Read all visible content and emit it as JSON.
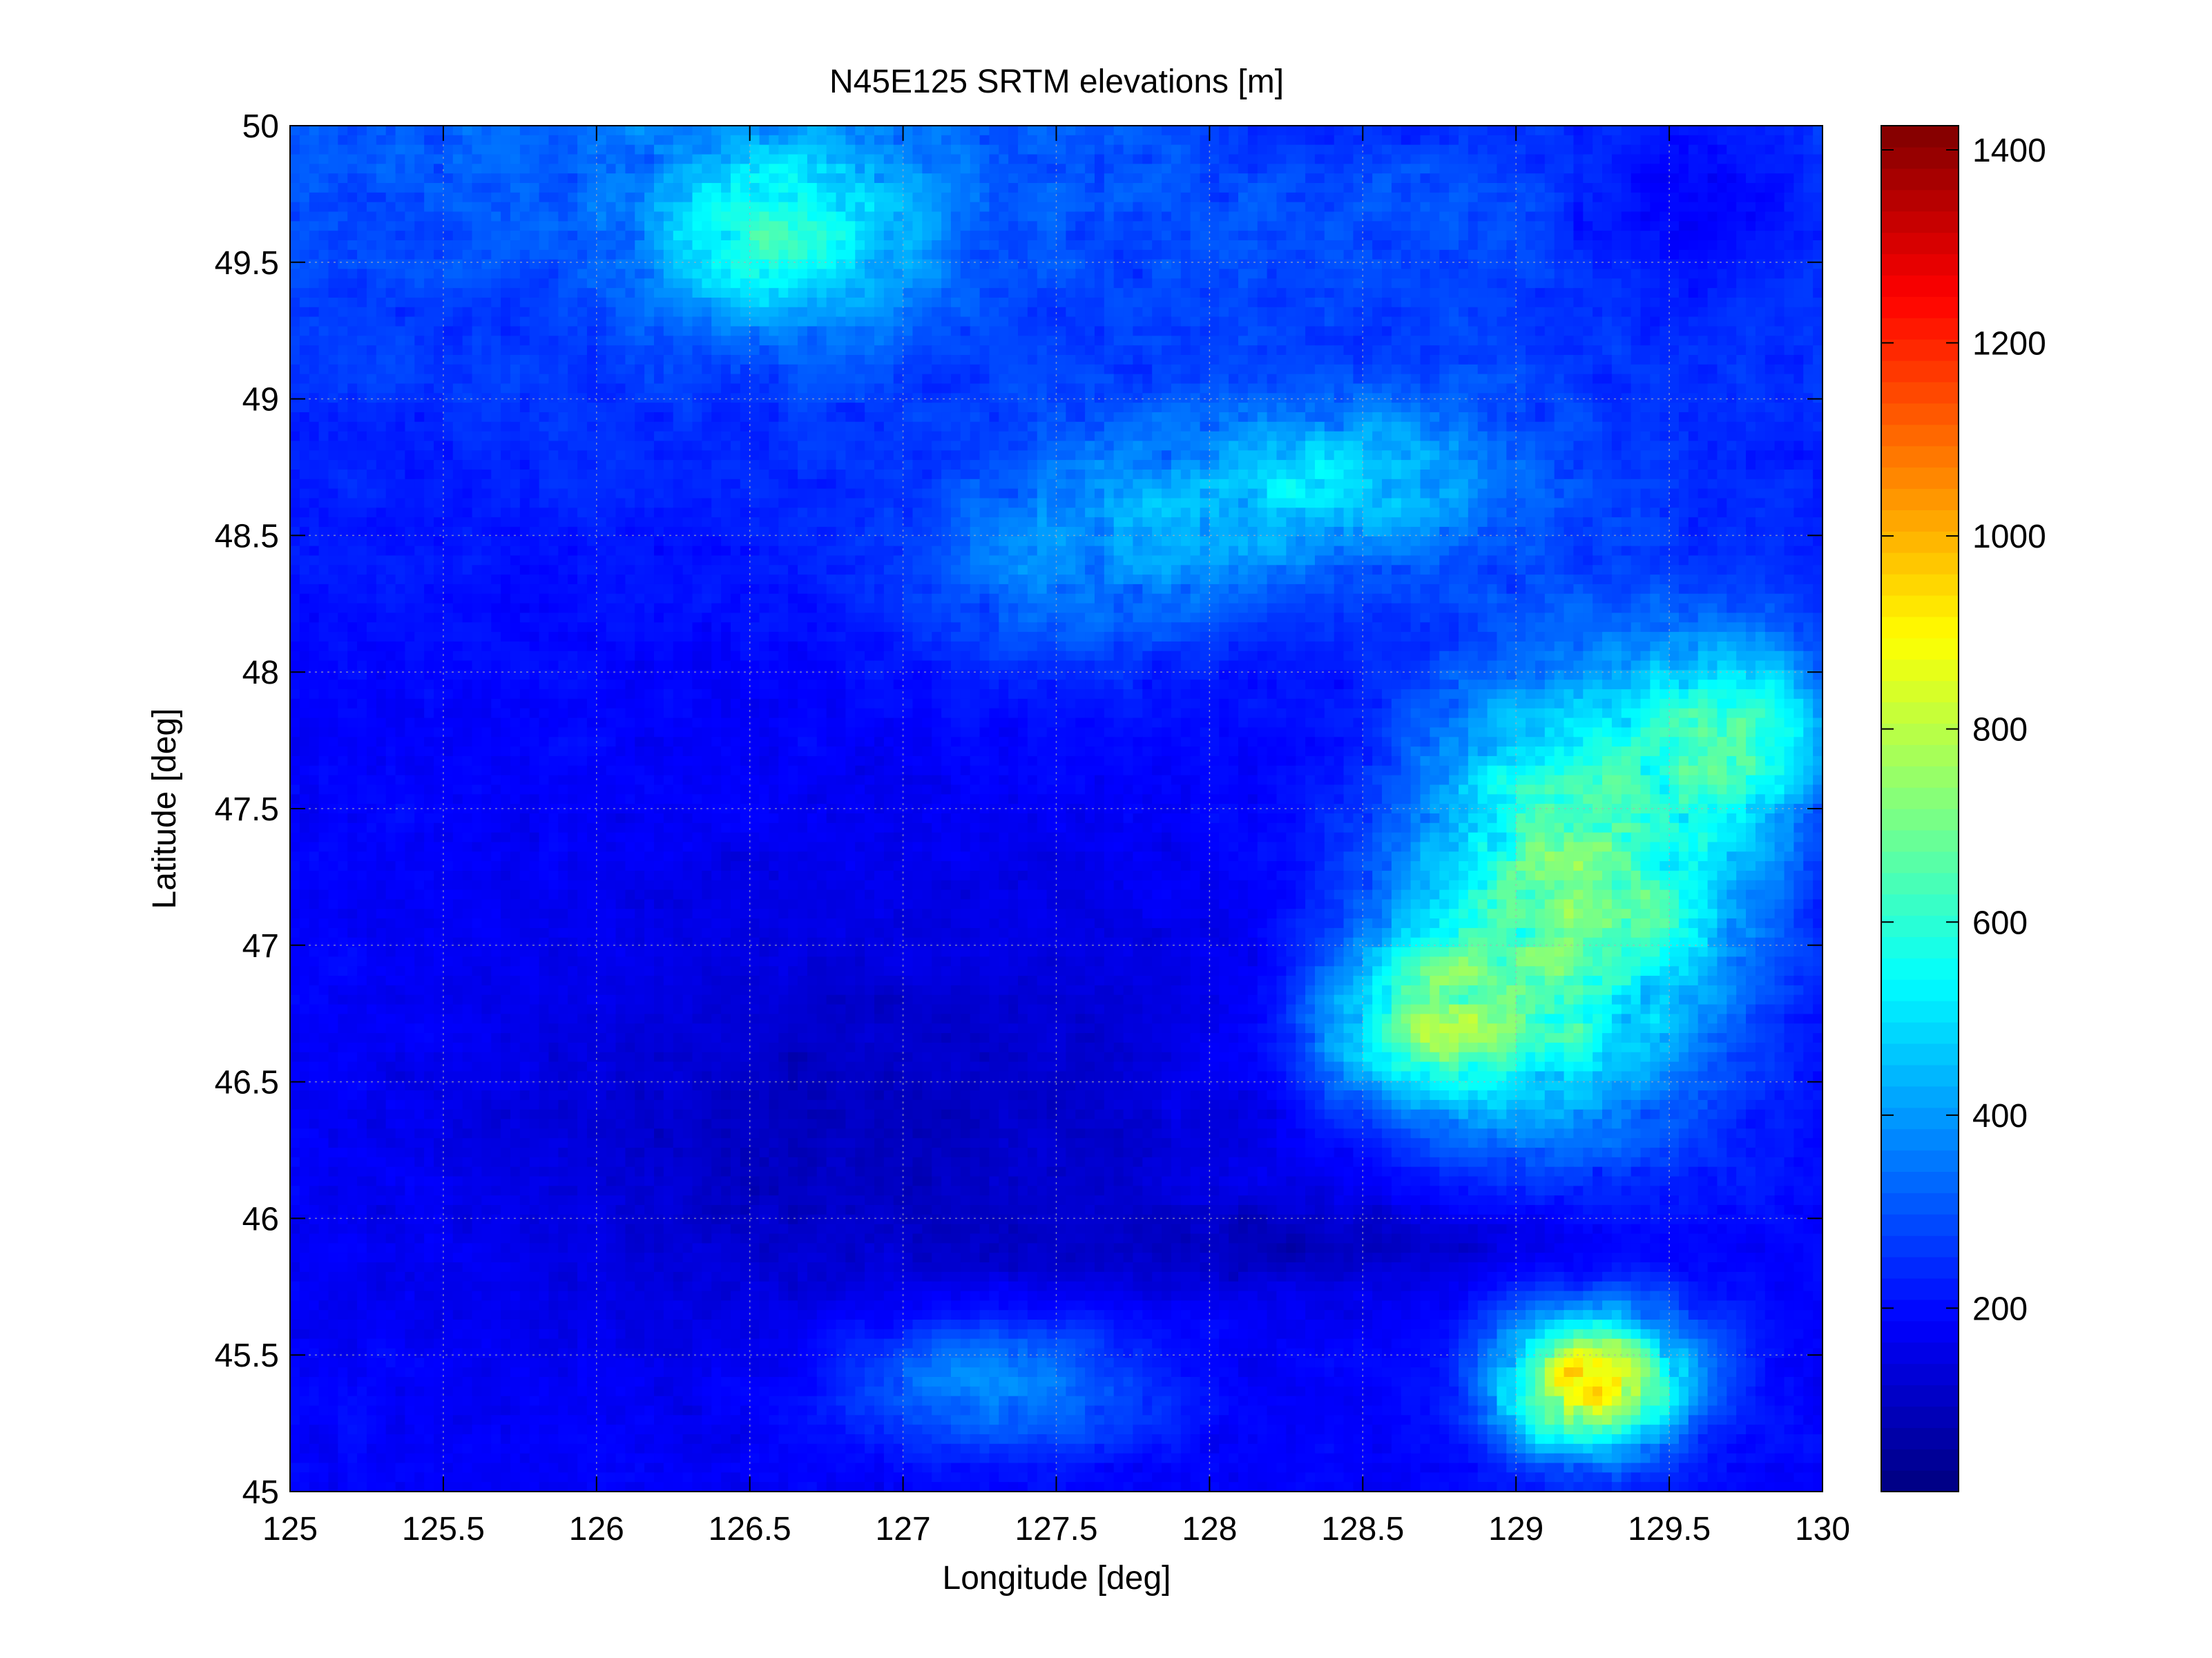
{
  "chart_data": {
    "type": "heatmap",
    "title": "N45E125 SRTM elevations [m]",
    "xlabel": "Longitude [deg]",
    "ylabel": "Latitude [deg]",
    "xlim": [
      125,
      130
    ],
    "ylim": [
      45,
      50
    ],
    "x_ticks": [
      "125",
      "125.5",
      "126",
      "126.5",
      "127",
      "127.5",
      "128",
      "128.5",
      "129",
      "129.5",
      "130"
    ],
    "x_tick_values": [
      125,
      125.5,
      126,
      126.5,
      127,
      127.5,
      128,
      128.5,
      129,
      129.5,
      130
    ],
    "y_ticks": [
      "45",
      "45.5",
      "46",
      "46.5",
      "47",
      "47.5",
      "48",
      "48.5",
      "49",
      "49.5",
      "50"
    ],
    "y_tick_values": [
      45,
      45.5,
      46,
      46.5,
      47,
      47.5,
      48,
      48.5,
      49,
      49.5,
      50
    ],
    "grid": true,
    "colormap": "jet",
    "colorbar": {
      "clim": [
        10,
        1425
      ],
      "ticks": [
        "200",
        "400",
        "600",
        "800",
        "1000",
        "1200",
        "1400"
      ],
      "tick_values": [
        200,
        400,
        600,
        800,
        1000,
        1200,
        1400
      ],
      "placement": "right"
    },
    "colors": {
      "axes_edge": "#000000",
      "grid": "#b0b0b0",
      "low": "#00007f",
      "high": "#7f0000"
    }
  }
}
